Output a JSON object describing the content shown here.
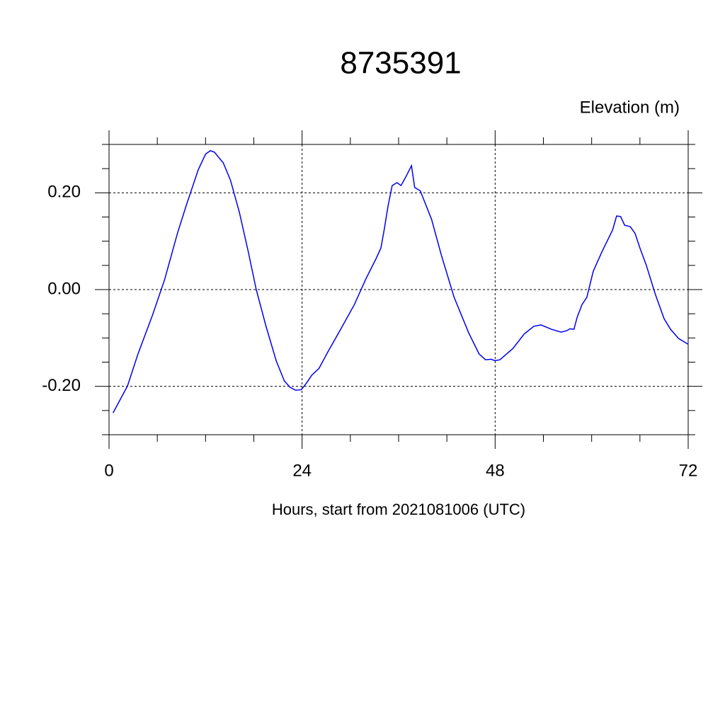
{
  "chart_data": {
    "type": "line",
    "title": "8735391",
    "subtitle": "Elevation (m)",
    "x_label": "Hours, start from 2021081006 (UTC)",
    "xlim": [
      0,
      72
    ],
    "ylim": [
      -0.3,
      0.3
    ],
    "xticks": [
      0,
      24,
      48,
      72
    ],
    "yticks": [
      {
        "value": -0.2,
        "label": "-0.20"
      },
      {
        "value": 0,
        "label": "0.00"
      },
      {
        "value": 0.2,
        "label": "0.20"
      }
    ],
    "grid": true,
    "series": [
      {
        "color": "#0000ee",
        "x": [
          0.5,
          2.3,
          3.6,
          5.4,
          6.9,
          8.5,
          9.6,
          11.1,
          12,
          12.6,
          13.1,
          14.2,
          15.1,
          16.2,
          17.3,
          18.3,
          19.5,
          20.8,
          21.8,
          22.5,
          23.2,
          23.9,
          24.6,
          25.2,
          26.1,
          27.2,
          28.8,
          30.5,
          31.9,
          33.2,
          33.8,
          34.2,
          34.7,
          35.2,
          35.8,
          36.3,
          36.9,
          37.6,
          38,
          38.7,
          40.1,
          41.3,
          42.9,
          44.7,
          46,
          46.8,
          47.5,
          48,
          48.6,
          50.2,
          51.6,
          52.8,
          53.7,
          55,
          56.2,
          56.9,
          57.3,
          57.8,
          58.2,
          58.8,
          59.4,
          60.2,
          61.3,
          62.6,
          63.1,
          63.6,
          64.1,
          64.8,
          65.4,
          66,
          66.8,
          67.9,
          69,
          69.8,
          70.8,
          72
        ],
        "values": [
          -0.255,
          -0.199,
          -0.133,
          -0.053,
          0.02,
          0.116,
          0.174,
          0.248,
          0.28,
          0.287,
          0.284,
          0.262,
          0.226,
          0.16,
          0.079,
          0,
          -0.075,
          -0.148,
          -0.189,
          -0.202,
          -0.208,
          -0.207,
          -0.192,
          -0.177,
          -0.163,
          -0.129,
          -0.082,
          -0.031,
          0.021,
          0.064,
          0.086,
          0.123,
          0.174,
          0.215,
          0.221,
          0.215,
          0.233,
          0.256,
          0.211,
          0.204,
          0.145,
          0.072,
          -0.016,
          -0.089,
          -0.133,
          -0.145,
          -0.144,
          -0.147,
          -0.145,
          -0.122,
          -0.092,
          -0.076,
          -0.073,
          -0.082,
          -0.088,
          -0.085,
          -0.081,
          -0.082,
          -0.057,
          -0.031,
          -0.016,
          0.038,
          0.079,
          0.123,
          0.152,
          0.151,
          0.133,
          0.13,
          0.116,
          0.086,
          0.05,
          -0.009,
          -0.06,
          -0.082,
          -0.101,
          -0.113
        ]
      }
    ]
  }
}
